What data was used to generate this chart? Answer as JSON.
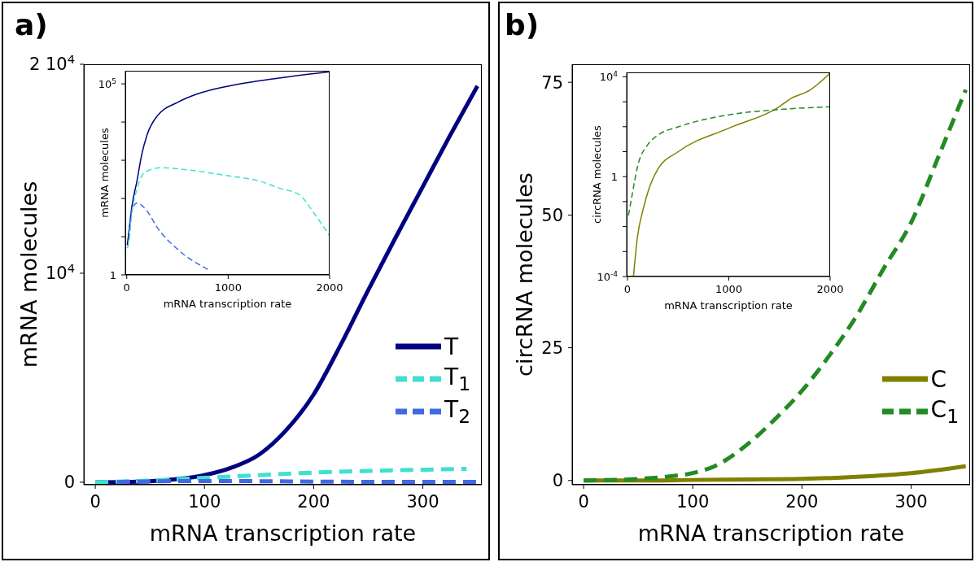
{
  "chart_data": [
    {
      "type": "line",
      "title": "a)",
      "xlabel": "mRNA transcription rate",
      "ylabel": "mRNA molecules",
      "xlim": [
        -10.5,
        354
      ],
      "ylim": [
        -120,
        20000
      ],
      "xticks": [
        0,
        100,
        200,
        300
      ],
      "yticks": [
        0,
        {
          "value": 10000,
          "label": "10$^{4}$"
        },
        {
          "value": 20000,
          "label": "2 10$^{4}$"
        }
      ],
      "legend": "lower right",
      "series": [
        {
          "name": "T",
          "color": "#000080",
          "line_style": "solid",
          "x": [
            0,
            25,
            50,
            75,
            100,
            125,
            150,
            175,
            200,
            225,
            250,
            275,
            300,
            325,
            350
          ],
          "values": [
            0,
            10,
            50,
            150,
            340,
            700,
            1320,
            2500,
            4200,
            6600,
            9200,
            11700,
            14150,
            16600,
            18960
          ]
        },
        {
          "name": "T$_{1}$",
          "color": "#40e0d0",
          "line_style": "dashed",
          "x": [
            0,
            50,
            100,
            150,
            200,
            250,
            300,
            340
          ],
          "values": [
            0,
            80,
            210,
            340,
            460,
            540,
            600,
            640
          ]
        },
        {
          "name": "T$_{2}$",
          "color": "#4169e1",
          "line_style": "dashed",
          "x": [
            20,
            50,
            100,
            150,
            200,
            250,
            300,
            350
          ],
          "values": [
            10,
            40,
            60,
            50,
            30,
            20,
            20,
            20
          ]
        }
      ]
    },
    {
      "type": "line",
      "xlabel": "mRNA transcription rate",
      "ylabel": "mRNA molecules",
      "log": "y",
      "xlim": [
        -14,
        2000
      ],
      "ylim": [
        1,
        220000
      ],
      "xticks": [
        0,
        1000,
        2000
      ],
      "yticks": [
        1,
        {
          "value": 10,
          "label": null
        },
        {
          "value": 100,
          "label": null
        },
        {
          "value": 1000,
          "label": null
        },
        {
          "value": 10000,
          "label": null
        },
        {
          "value": 100000,
          "label": "10$^{5}$"
        }
      ],
      "series": [
        {
          "color": "#000080",
          "line_style": "solid",
          "x": [
            5,
            20,
            50,
            100,
            150,
            200,
            300,
            500,
            700,
            1000,
            1500,
            2000
          ],
          "values": [
            6,
            12.6,
            60,
            283,
            1500,
            4600,
            14400,
            32600,
            55000,
            87000,
            142000,
            208000
          ]
        },
        {
          "color": "#40e0d0",
          "line_style": "dashed",
          "x": [
            5,
            20,
            50,
            100,
            170,
            330,
            600,
            1000,
            1300,
            1500,
            1700,
            1850,
            2000
          ],
          "values": [
            5,
            6.6,
            40,
            173,
            464,
            640,
            560,
            393,
            290,
            188,
            125,
            40,
            10.4
          ]
        },
        {
          "color": "#4169e1",
          "line_style": "dashed",
          "x": [
            20,
            50,
            100,
            200,
            300,
            500,
            800
          ],
          "values": [
            12.6,
            50,
            76,
            47,
            17.5,
            4.7,
            1.4
          ]
        }
      ]
    },
    {
      "type": "line",
      "title": "b)",
      "xlabel": "mRNA transcription rate",
      "ylabel": "circRNA molecules",
      "xlim": [
        -10.5,
        354
      ],
      "ylim": [
        -0.8,
        78.4
      ],
      "xticks": [
        0,
        100,
        200,
        300
      ],
      "yticks": [
        0,
        25,
        50,
        75
      ],
      "legend": "lower right",
      "series": [
        {
          "name": "C",
          "color": "#808000",
          "line_style": "solid",
          "x": [
            0,
            50,
            100,
            150,
            200,
            250,
            300,
            350
          ],
          "values": [
            0,
            0,
            0.1,
            0.2,
            0.3,
            0.7,
            1.4,
            2.7
          ]
        },
        {
          "name": "C$_{1}$",
          "color": "#228b22",
          "line_style": "dashed",
          "x": [
            0,
            50,
            80,
            100,
            120,
            150,
            175,
            200,
            225,
            250,
            275,
            300,
            325,
            350
          ],
          "values": [
            0,
            0.3,
            0.8,
            1.4,
            2.7,
            6.8,
            11.5,
            16.9,
            23.5,
            31,
            40,
            48.6,
            61,
            73.6
          ]
        }
      ]
    },
    {
      "type": "line",
      "xlabel": "mRNA transcription rate",
      "ylabel": "circRNA molecules",
      "log": "y",
      "xlim": [
        -8,
        2000
      ],
      "ylim": [
        0.0001,
        15000
      ],
      "xticks": [
        0,
        1000,
        2000
      ],
      "yticks": [
        {
          "value": 0.0001,
          "label": "10$^{-4}$"
        },
        {
          "value": 0.001,
          "label": null
        },
        {
          "value": 0.01,
          "label": null
        },
        {
          "value": 0.1,
          "label": null
        },
        1,
        {
          "value": 10,
          "label": null
        },
        {
          "value": 100,
          "label": null
        },
        {
          "value": 1000,
          "label": null
        },
        {
          "value": 10000,
          "label": "10$^{4}$"
        }
      ],
      "series": [
        {
          "color": "#808000",
          "line_style": "solid",
          "x": [
            59,
            100,
            150,
            200,
            300,
            500,
            1000,
            1500,
            1600,
            1800,
            2000
          ],
          "values": [
            0.0001,
            0.0043,
            0.041,
            0.23,
            2,
            10,
            87,
            640,
            1260,
            2900,
            14000
          ]
        },
        {
          "color": "#228b22",
          "line_style": "dashed",
          "x": [
            10,
            50,
            100,
            200,
            300,
            500,
            1000,
            1500,
            2000
          ],
          "values": [
            0.028,
            0.23,
            2.6,
            19,
            46,
            98,
            300,
            490,
            630
          ]
        }
      ]
    }
  ]
}
